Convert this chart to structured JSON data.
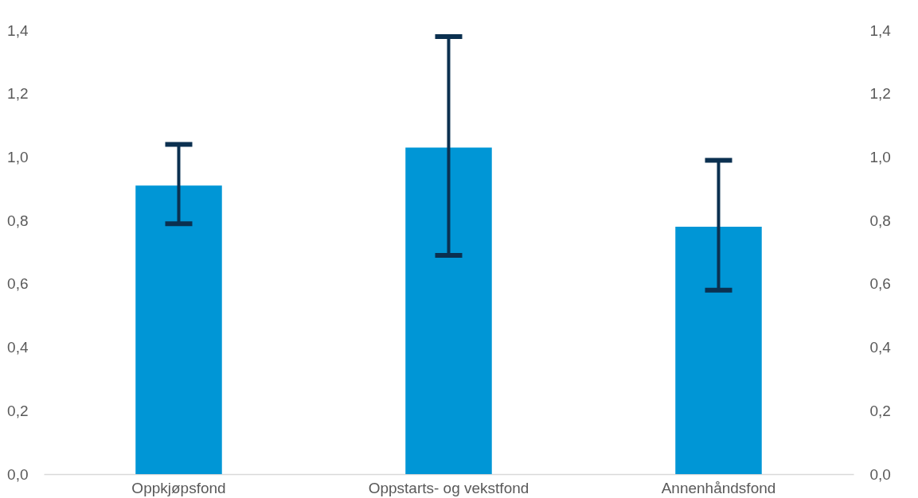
{
  "chart_data": {
    "type": "bar",
    "categories": [
      "Oppkjøpsfond",
      "Oppstarts- og vekstfond",
      "Annenhåndsfond"
    ],
    "values": [
      0.91,
      1.03,
      0.78
    ],
    "color": "#0096d6",
    "errors": [
      [
        0.79,
        1.04
      ],
      [
        0.69,
        1.38
      ],
      [
        0.58,
        0.99
      ]
    ],
    "ylim": [
      0,
      1.4
    ],
    "yticks": [
      {
        "value": 0,
        "label": "0,0"
      },
      {
        "value": 0.2,
        "label": "0,2"
      },
      {
        "value": 0.4,
        "label": "0,4"
      },
      {
        "value": 0.6,
        "label": "0,6"
      },
      {
        "value": 0.8,
        "label": "0,8"
      },
      {
        "value": 1,
        "label": "1,0"
      },
      {
        "value": 1.2,
        "label": "1,2"
      },
      {
        "value": 1.4,
        "label": "1,4"
      }
    ],
    "y2lim": [
      0,
      1.4
    ],
    "y2ticks": [
      {
        "value": 0,
        "label": "0,0"
      },
      {
        "value": 0.2,
        "label": "0,2"
      },
      {
        "value": 0.4,
        "label": "0,4"
      },
      {
        "value": 0.6,
        "label": "0,6"
      },
      {
        "value": 0.8,
        "label": "0,8"
      },
      {
        "value": 1,
        "label": "1,0"
      },
      {
        "value": 1.2,
        "label": "1,2"
      },
      {
        "value": 1.4,
        "label": "1,4"
      }
    ]
  }
}
